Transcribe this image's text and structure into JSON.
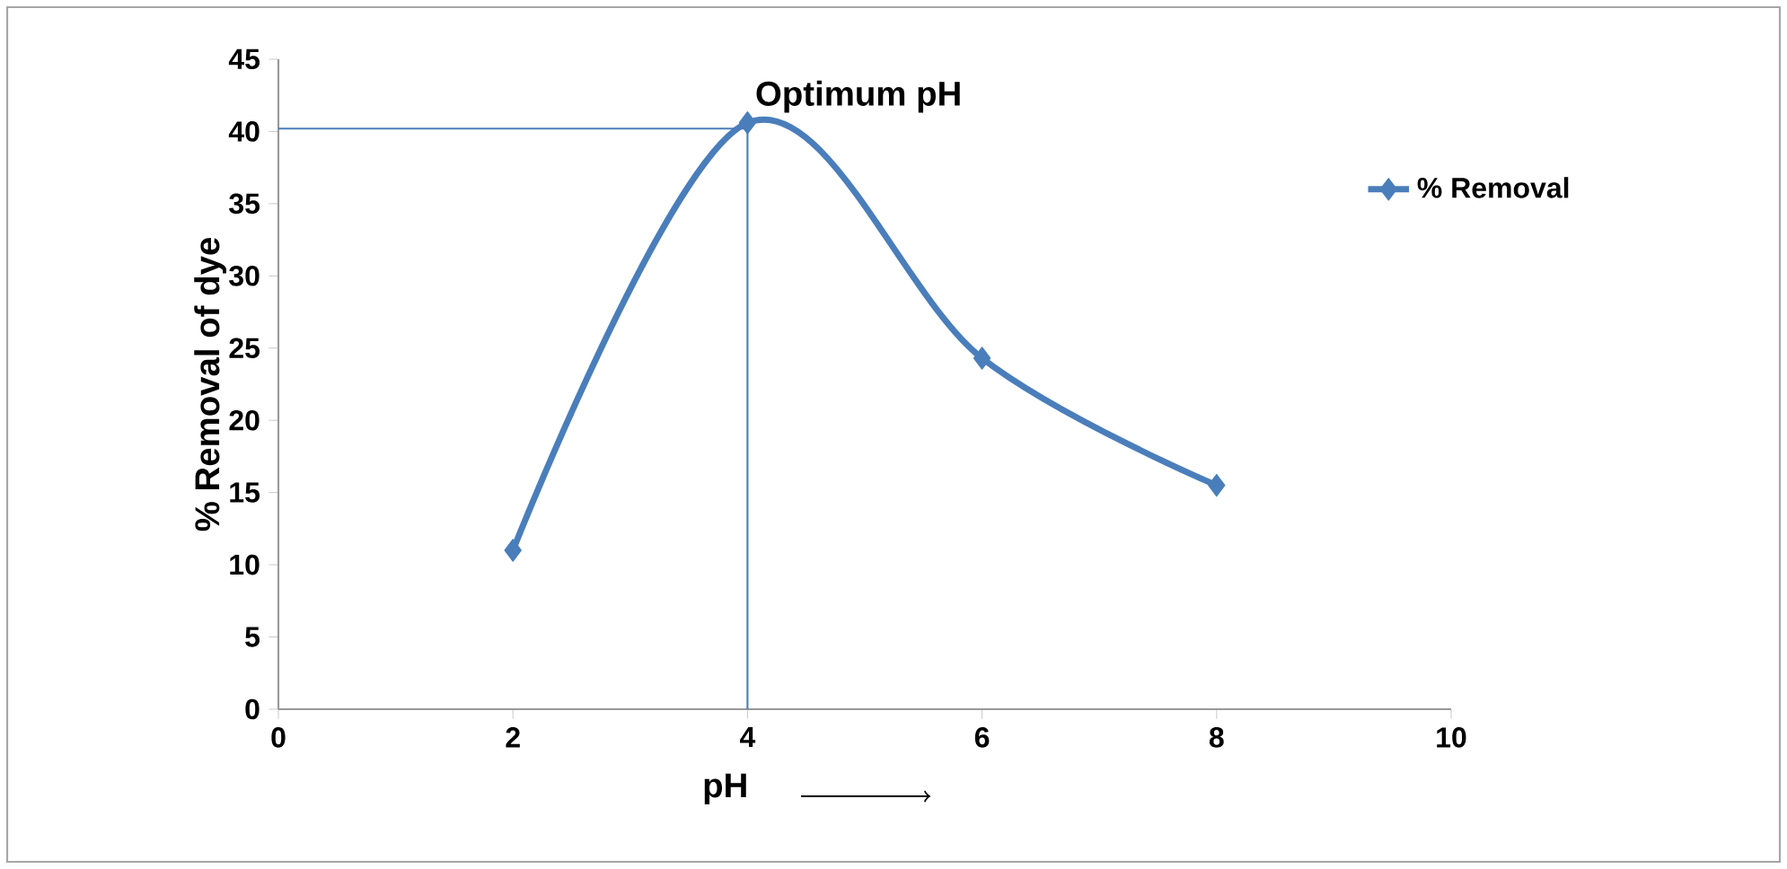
{
  "chart_data": {
    "type": "line",
    "xlabel": "pH",
    "ylabel": "% Removal of dye",
    "x": [
      2,
      4,
      6,
      8
    ],
    "series": [
      {
        "name": "% Removal",
        "color": "#4a7ebb",
        "values": [
          11,
          40.6,
          24.3,
          15.5
        ]
      }
    ],
    "xlim": [
      0,
      10
    ],
    "xticks": [
      0,
      2,
      4,
      6,
      8,
      10
    ],
    "ylim": [
      0,
      45
    ],
    "yticks": [
      0,
      5,
      10,
      15,
      20,
      25,
      30,
      35,
      40,
      45
    ],
    "ref_lines": [
      {
        "axis": "y",
        "value": 40.2,
        "color": "#4a7ebb"
      },
      {
        "axis": "x",
        "value": 4,
        "color": "#4a7ebb"
      }
    ],
    "annotations": [
      {
        "text": "Optimum pH",
        "x": 4,
        "y": 40.6
      }
    ],
    "marker": "diamond",
    "line_style": "solid",
    "grid": false,
    "legend": "right"
  }
}
